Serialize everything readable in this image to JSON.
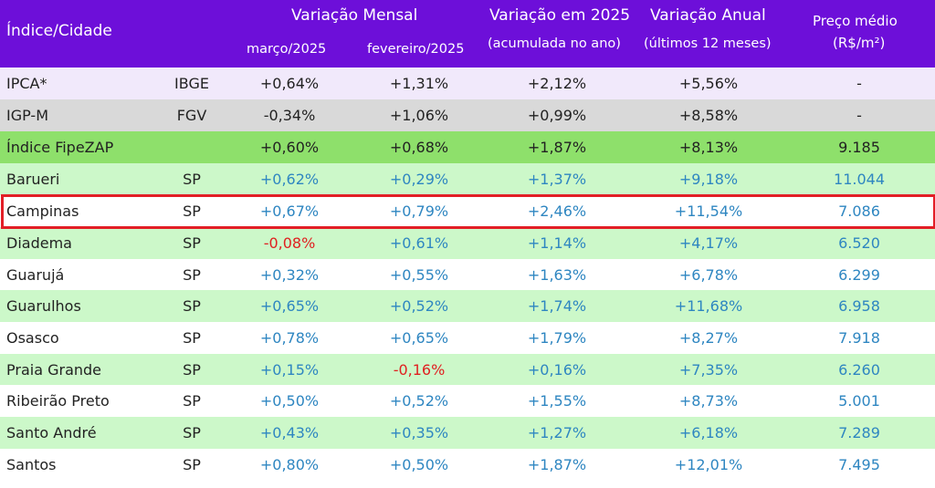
{
  "header": {
    "indice_cidade": "Índice/Cidade",
    "variacao_mensal": "Variação Mensal",
    "marco": "março/2025",
    "fevereiro": "fevereiro/2025",
    "variacao_2025": "Variação em 2025",
    "acumulada": "(acumulada no ano)",
    "variacao_anual": "Variação Anual",
    "ultimos_12": "(últimos 12 meses)",
    "preco_medio": "Preço médio",
    "unidade": "(R$/m²)"
  },
  "colors": {
    "header_bg": "#6d0fd9",
    "highlight_border": "#e21e26",
    "positive_text": "#2e86c1",
    "negative_text": "#e02020"
  },
  "rows": [
    {
      "name": "IPCA*",
      "uf": "IBGE",
      "mar": "+0,64%",
      "fev": "+1,31%",
      "acc": "+2,12%",
      "anual": "+5,56%",
      "preco": "-"
    },
    {
      "name": "IGP-M",
      "uf": "FGV",
      "mar": "-0,34%",
      "fev": "+1,06%",
      "acc": "+0,99%",
      "anual": "+8,58%",
      "preco": "-"
    },
    {
      "name": "Índice FipeZAP",
      "uf": "",
      "mar": "+0,60%",
      "fev": "+0,68%",
      "acc": "+1,87%",
      "anual": "+8,13%",
      "preco": "9.185"
    },
    {
      "name": "Barueri",
      "uf": "SP",
      "mar": "+0,62%",
      "fev": "+0,29%",
      "acc": "+1,37%",
      "anual": "+9,18%",
      "preco": "11.044"
    },
    {
      "name": "Campinas",
      "uf": "SP",
      "mar": "+0,67%",
      "fev": "+0,79%",
      "acc": "+2,46%",
      "anual": "+11,54%",
      "preco": "7.086"
    },
    {
      "name": "Diadema",
      "uf": "SP",
      "mar": "-0,08%",
      "fev": "+0,61%",
      "acc": "+1,14%",
      "anual": "+4,17%",
      "preco": "6.520"
    },
    {
      "name": "Guarujá",
      "uf": "SP",
      "mar": "+0,32%",
      "fev": "+0,55%",
      "acc": "+1,63%",
      "anual": "+6,78%",
      "preco": "6.299"
    },
    {
      "name": "Guarulhos",
      "uf": "SP",
      "mar": "+0,65%",
      "fev": "+0,52%",
      "acc": "+1,74%",
      "anual": "+11,68%",
      "preco": "6.958"
    },
    {
      "name": "Osasco",
      "uf": "SP",
      "mar": "+0,78%",
      "fev": "+0,65%",
      "acc": "+1,79%",
      "anual": "+8,27%",
      "preco": "7.918"
    },
    {
      "name": "Praia Grande",
      "uf": "SP",
      "mar": "+0,15%",
      "fev": "-0,16%",
      "acc": "+0,16%",
      "anual": "+7,35%",
      "preco": "6.260"
    },
    {
      "name": "Ribeirão Preto",
      "uf": "SP",
      "mar": "+0,50%",
      "fev": "+0,52%",
      "acc": "+1,55%",
      "anual": "+8,73%",
      "preco": "5.001"
    },
    {
      "name": "Santo André",
      "uf": "SP",
      "mar": "+0,43%",
      "fev": "+0,35%",
      "acc": "+1,27%",
      "anual": "+6,18%",
      "preco": "7.289"
    },
    {
      "name": "Santos",
      "uf": "SP",
      "mar": "+0,80%",
      "fev": "+0,50%",
      "acc": "+1,87%",
      "anual": "+12,01%",
      "preco": "7.495"
    }
  ]
}
